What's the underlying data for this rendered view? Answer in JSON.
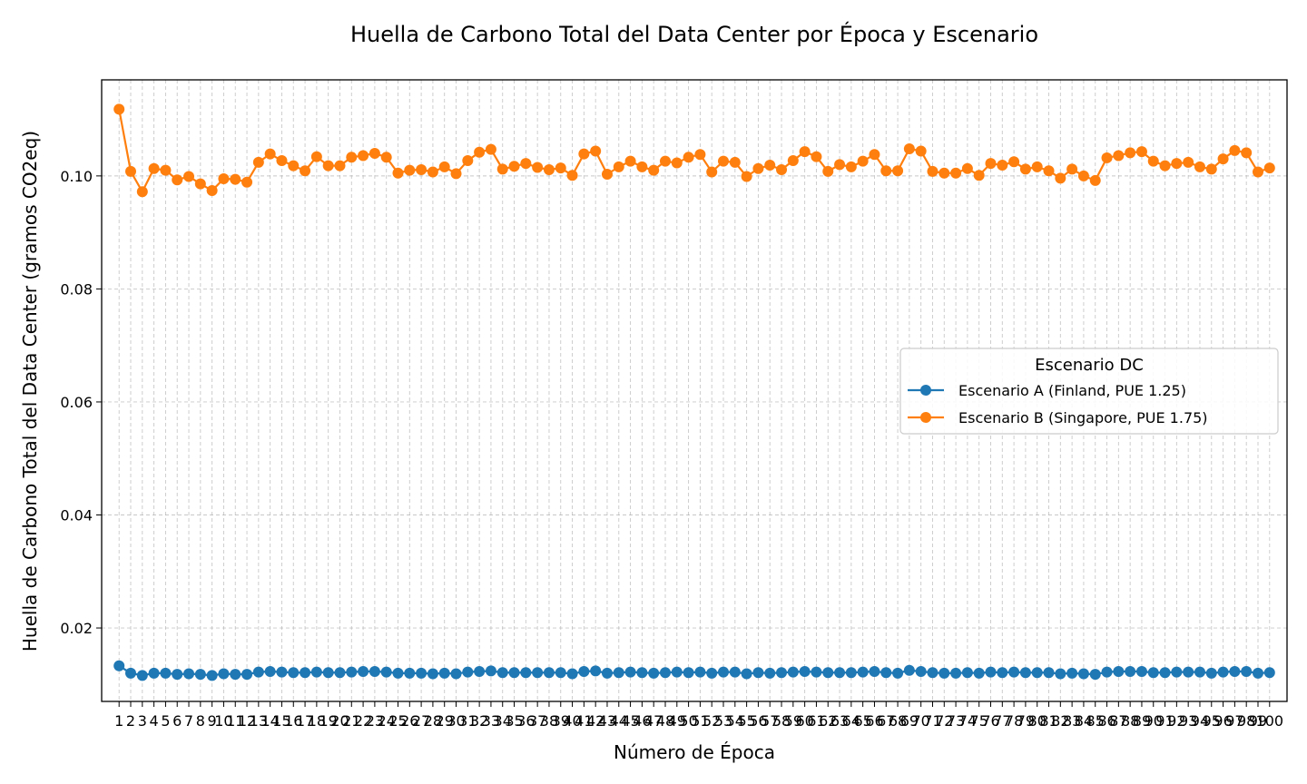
{
  "chart_data": {
    "type": "line",
    "title": "Huella de Carbono Total del Data Center por Época y Escenario",
    "xlabel": "Número de Época",
    "ylabel": "Huella de Carbono Total del Data Center (gramos CO2eq)",
    "xlim": [
      -0.5,
      101.5
    ],
    "ylim": [
      0.007,
      0.117
    ],
    "yticks": [
      0.02,
      0.04,
      0.06,
      0.08,
      0.1
    ],
    "ytick_labels": [
      "0.02",
      "0.04",
      "0.06",
      "0.08",
      "0.10"
    ],
    "grid": true,
    "legend": {
      "title": "Escenario DC",
      "placement": "center-right"
    },
    "x": [
      1,
      2,
      3,
      4,
      5,
      6,
      7,
      8,
      9,
      10,
      11,
      12,
      13,
      14,
      15,
      16,
      17,
      18,
      19,
      20,
      21,
      22,
      23,
      24,
      25,
      26,
      27,
      28,
      29,
      30,
      31,
      32,
      33,
      34,
      35,
      36,
      37,
      38,
      39,
      40,
      41,
      42,
      43,
      44,
      45,
      46,
      47,
      48,
      49,
      50,
      51,
      52,
      53,
      54,
      55,
      56,
      57,
      58,
      59,
      60,
      61,
      62,
      63,
      64,
      65,
      66,
      67,
      68,
      69,
      70,
      71,
      72,
      73,
      74,
      75,
      76,
      77,
      78,
      79,
      80,
      81,
      82,
      83,
      84,
      85,
      86,
      87,
      88,
      89,
      90,
      91,
      92,
      93,
      94,
      95,
      96,
      97,
      98,
      99,
      100
    ],
    "series": [
      {
        "name": "Escenario A (Finland, PUE 1.25)",
        "color": "#1f77b4",
        "values": [
          0.0133,
          0.012,
          0.0116,
          0.012,
          0.012,
          0.0118,
          0.0119,
          0.0118,
          0.0116,
          0.0119,
          0.0118,
          0.0118,
          0.0122,
          0.0123,
          0.0122,
          0.0121,
          0.0121,
          0.0122,
          0.0121,
          0.0121,
          0.0122,
          0.0123,
          0.0123,
          0.0122,
          0.012,
          0.012,
          0.012,
          0.0119,
          0.012,
          0.0119,
          0.0122,
          0.0123,
          0.0124,
          0.0121,
          0.0121,
          0.0121,
          0.0121,
          0.0121,
          0.0121,
          0.0119,
          0.0123,
          0.0124,
          0.012,
          0.0121,
          0.0122,
          0.0121,
          0.012,
          0.0121,
          0.0122,
          0.0121,
          0.0122,
          0.012,
          0.0122,
          0.0122,
          0.0119,
          0.0121,
          0.012,
          0.0121,
          0.0122,
          0.0123,
          0.0122,
          0.0121,
          0.0121,
          0.0121,
          0.0122,
          0.0123,
          0.0121,
          0.012,
          0.0125,
          0.0123,
          0.0121,
          0.012,
          0.012,
          0.0121,
          0.012,
          0.0122,
          0.0121,
          0.0122,
          0.0121,
          0.0121,
          0.0121,
          0.0119,
          0.012,
          0.0119,
          0.0118,
          0.0122,
          0.0123,
          0.0123,
          0.0123,
          0.0121,
          0.0121,
          0.0122,
          0.0122,
          0.0122,
          0.012,
          0.0122,
          0.0123,
          0.0123,
          0.012,
          0.0121
        ]
      },
      {
        "name": "Escenario B (Singapore, PUE 1.75)",
        "color": "#ff7f0e",
        "values": [
          0.1118,
          0.1008,
          0.0972,
          0.1013,
          0.101,
          0.0993,
          0.0999,
          0.0986,
          0.0974,
          0.0995,
          0.0994,
          0.0989,
          0.1024,
          0.1039,
          0.1027,
          0.1018,
          0.1009,
          0.1034,
          0.1018,
          0.1018,
          0.1033,
          0.1036,
          0.104,
          0.1033,
          0.1005,
          0.101,
          0.1011,
          0.1007,
          0.1016,
          0.1004,
          0.1027,
          0.1042,
          0.1047,
          0.1012,
          0.1017,
          0.1022,
          0.1015,
          0.1011,
          0.1014,
          0.1001,
          0.1039,
          0.1044,
          0.1003,
          0.1016,
          0.1026,
          0.1016,
          0.101,
          0.1026,
          0.1023,
          0.1033,
          0.1038,
          0.1007,
          0.1026,
          0.1024,
          0.0999,
          0.1013,
          0.1019,
          0.1011,
          0.1027,
          0.1043,
          0.1034,
          0.1008,
          0.102,
          0.1016,
          0.1026,
          0.1038,
          0.1009,
          0.1009,
          0.1048,
          0.1044,
          0.1008,
          0.1005,
          0.1005,
          0.1013,
          0.1001,
          0.1022,
          0.1019,
          0.1025,
          0.1012,
          0.1016,
          0.1009,
          0.0996,
          0.1012,
          0.1,
          0.0992,
          0.1032,
          0.1036,
          0.1041,
          0.1043,
          0.1026,
          0.1018,
          0.1022,
          0.1024,
          0.1016,
          0.1012,
          0.103,
          0.1045,
          0.1041,
          0.1007,
          0.1014
        ]
      }
    ]
  }
}
